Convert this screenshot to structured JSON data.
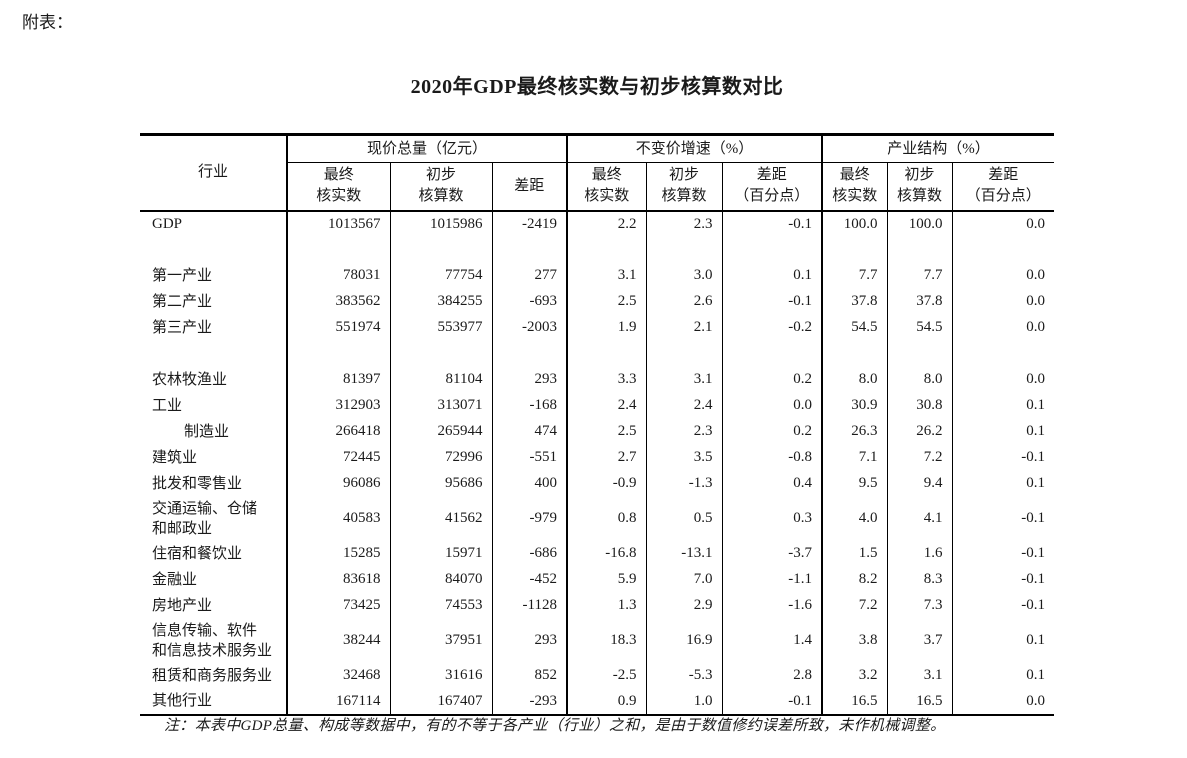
{
  "page": {
    "pretitle": "附表：",
    "title": "2020年GDP最终核实数与初步核算数对比",
    "note": "注：本表中GDP总量、构成等数据中，有的不等于各产业（行业）之和，是由于数值修约误差所致，未作机械调整。"
  },
  "table": {
    "row_header": "行业",
    "groups": [
      {
        "label": "现价总量（亿元）",
        "cols": [
          "最终\n核实数",
          "初步\n核算数",
          "差距"
        ]
      },
      {
        "label": "不变价增速（%）",
        "cols": [
          "最终\n核实数",
          "初步\n核算数",
          "差距\n（百分点）"
        ]
      },
      {
        "label": "产业结构（%）",
        "cols": [
          "最终\n核实数",
          "初步\n核算数",
          "差距\n（百分点）"
        ]
      }
    ],
    "rows": [
      {
        "label": "GDP",
        "values": [
          "1013567",
          "1015986",
          "-2419",
          "2.2",
          "2.3",
          "-0.1",
          "100.0",
          "100.0",
          "0.0"
        ]
      },
      {
        "spacer": true
      },
      {
        "label": "第一产业",
        "values": [
          "78031",
          "77754",
          "277",
          "3.1",
          "3.0",
          "0.1",
          "7.7",
          "7.7",
          "0.0"
        ]
      },
      {
        "label": "第二产业",
        "values": [
          "383562",
          "384255",
          "-693",
          "2.5",
          "2.6",
          "-0.1",
          "37.8",
          "37.8",
          "0.0"
        ]
      },
      {
        "label": "第三产业",
        "values": [
          "551974",
          "553977",
          "-2003",
          "1.9",
          "2.1",
          "-0.2",
          "54.5",
          "54.5",
          "0.0"
        ]
      },
      {
        "spacer": true
      },
      {
        "label": "农林牧渔业",
        "values": [
          "81397",
          "81104",
          "293",
          "3.3",
          "3.1",
          "0.2",
          "8.0",
          "8.0",
          "0.0"
        ]
      },
      {
        "label": "工业",
        "values": [
          "312903",
          "313071",
          "-168",
          "2.4",
          "2.4",
          "0.0",
          "30.9",
          "30.8",
          "0.1"
        ]
      },
      {
        "label": "制造业",
        "indent": true,
        "values": [
          "266418",
          "265944",
          "474",
          "2.5",
          "2.3",
          "0.2",
          "26.3",
          "26.2",
          "0.1"
        ]
      },
      {
        "label": "建筑业",
        "values": [
          "72445",
          "72996",
          "-551",
          "2.7",
          "3.5",
          "-0.8",
          "7.1",
          "7.2",
          "-0.1"
        ]
      },
      {
        "label": "批发和零售业",
        "values": [
          "96086",
          "95686",
          "400",
          "-0.9",
          "-1.3",
          "0.4",
          "9.5",
          "9.4",
          "0.1"
        ]
      },
      {
        "label": "交通运输、仓储\n和邮政业",
        "tall": true,
        "values": [
          "40583",
          "41562",
          "-979",
          "0.8",
          "0.5",
          "0.3",
          "4.0",
          "4.1",
          "-0.1"
        ]
      },
      {
        "label": "住宿和餐饮业",
        "values": [
          "15285",
          "15971",
          "-686",
          "-16.8",
          "-13.1",
          "-3.7",
          "1.5",
          "1.6",
          "-0.1"
        ]
      },
      {
        "label": "金融业",
        "values": [
          "83618",
          "84070",
          "-452",
          "5.9",
          "7.0",
          "-1.1",
          "8.2",
          "8.3",
          "-0.1"
        ]
      },
      {
        "label": "房地产业",
        "values": [
          "73425",
          "74553",
          "-1128",
          "1.3",
          "2.9",
          "-1.6",
          "7.2",
          "7.3",
          "-0.1"
        ]
      },
      {
        "label": "信息传输、软件\n和信息技术服务业",
        "tall": true,
        "values": [
          "38244",
          "37951",
          "293",
          "18.3",
          "16.9",
          "1.4",
          "3.8",
          "3.7",
          "0.1"
        ]
      },
      {
        "label": "租赁和商务服务业",
        "values": [
          "32468",
          "31616",
          "852",
          "-2.5",
          "-5.3",
          "2.8",
          "3.2",
          "3.1",
          "0.1"
        ]
      },
      {
        "label": "其他行业",
        "values": [
          "167114",
          "167407",
          "-293",
          "0.9",
          "1.0",
          "-0.1",
          "16.5",
          "16.5",
          "0.0"
        ]
      }
    ]
  }
}
